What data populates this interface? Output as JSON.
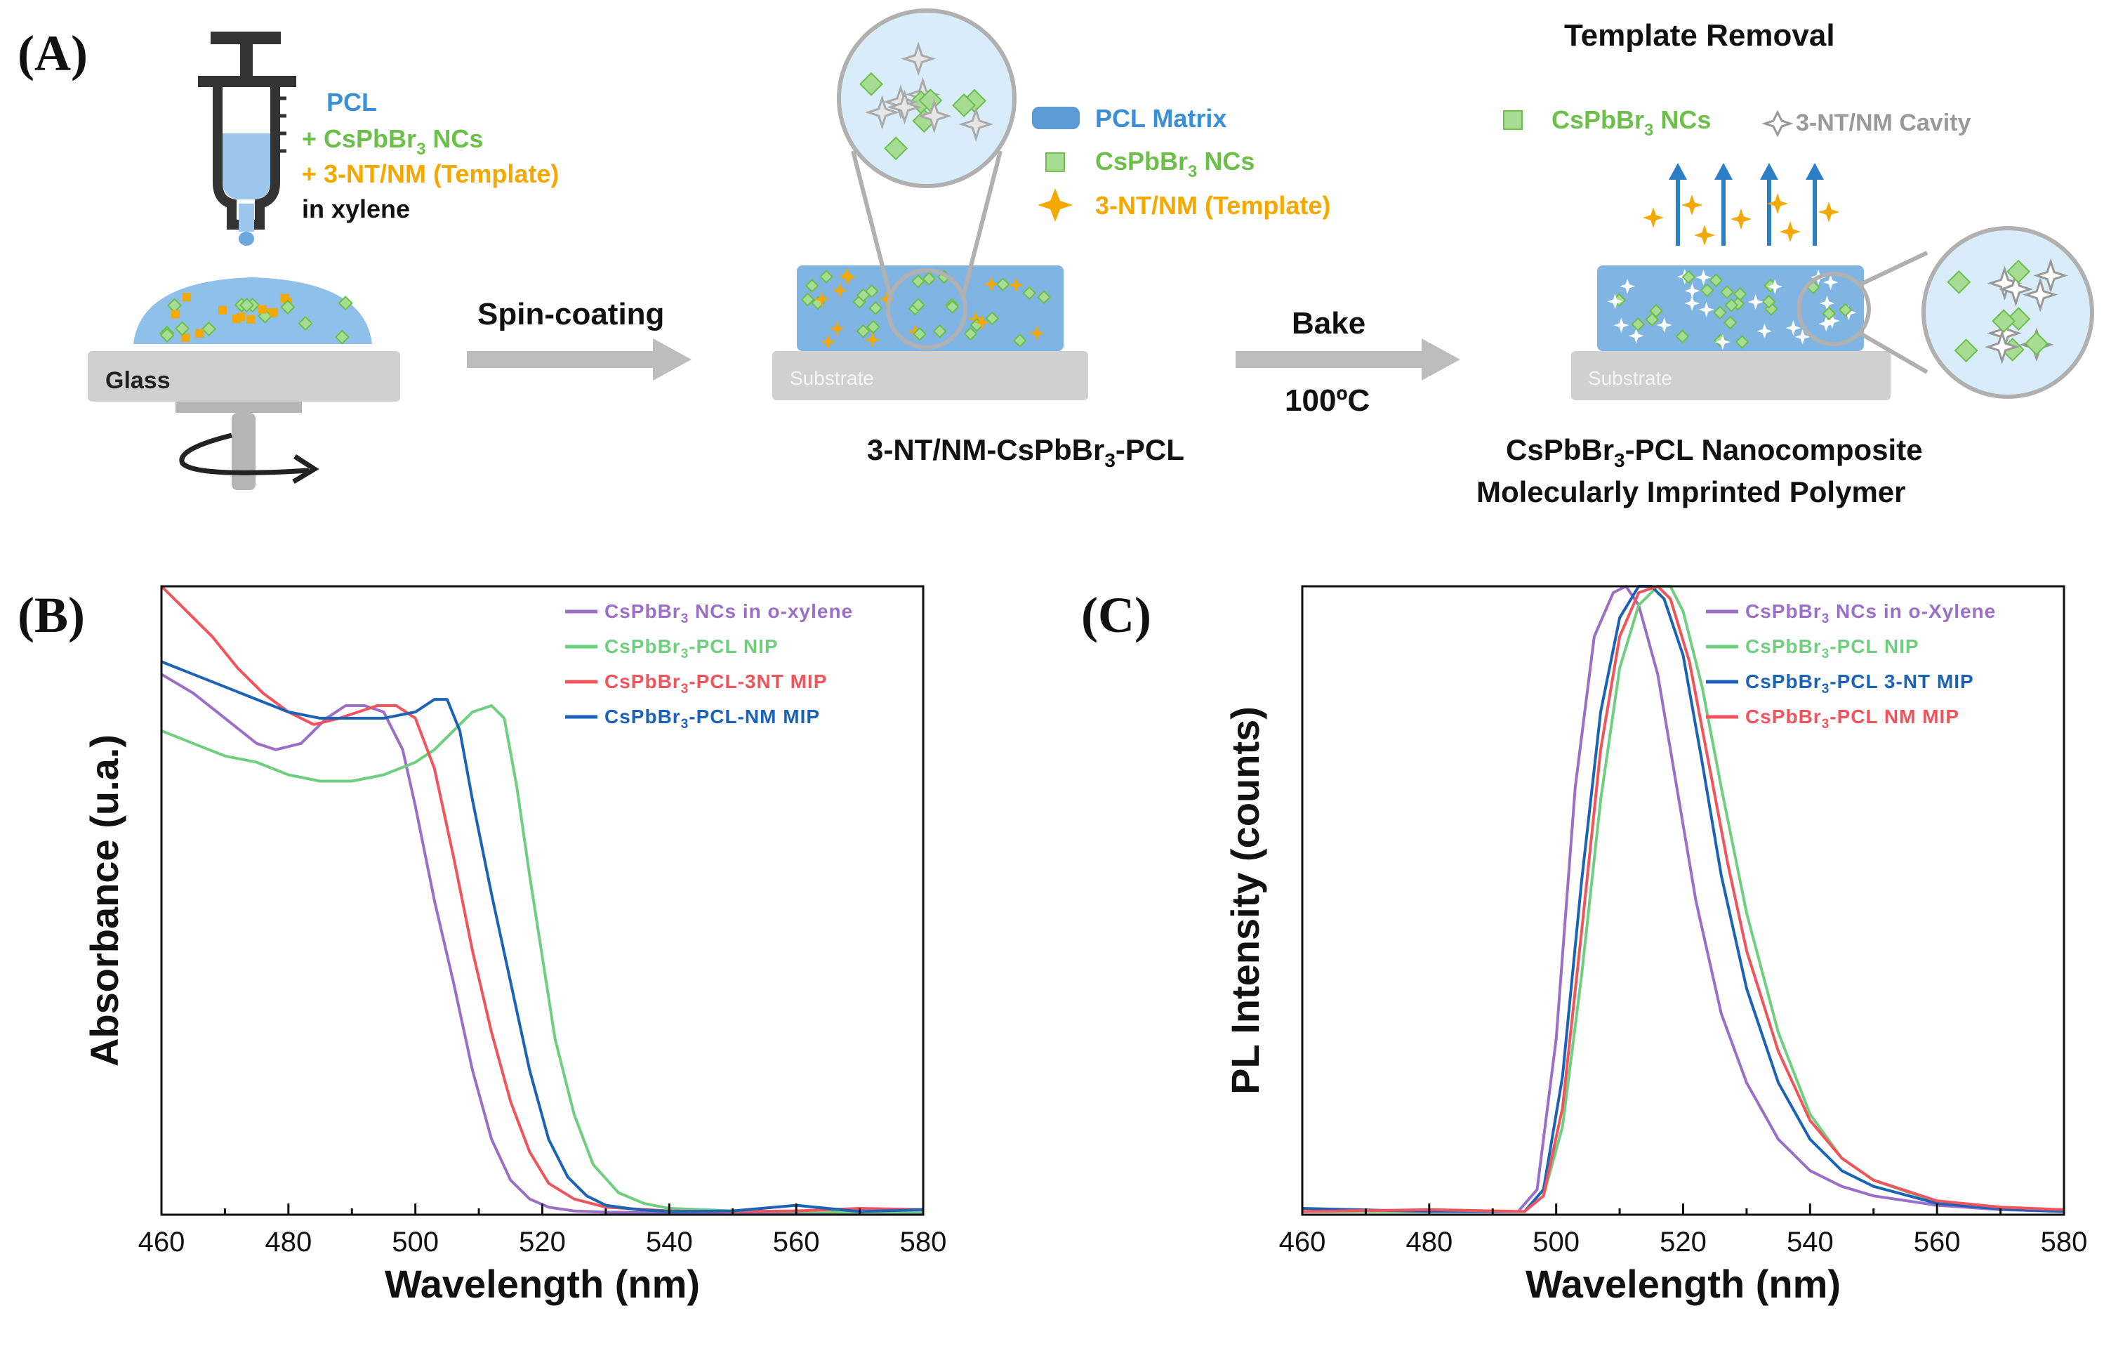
{
  "panel_a": {
    "label": "(A)",
    "mixture": {
      "pcl": "PCL",
      "nc": "+ CsPbBr",
      "nc_sub": "3",
      "nc_suffix": " NCs",
      "template": "+ 3-NT/NM (Template)",
      "solvent": "in xylene"
    },
    "glass_label": "Glass",
    "step1_label": "Spin-coating",
    "legend_mid": {
      "matrix": "PCL Matrix",
      "nc": "CsPbBr",
      "nc_sub": "3",
      "nc_suffix": " NCs",
      "template": "3-NT/NM (Template)"
    },
    "substrate_label": "Substrate",
    "film_caption": {
      "pre": "3-NT/NM-CsPbBr",
      "sub": "3",
      "post": "-PCL"
    },
    "step2_label": "Bake",
    "step2_temp": "100ºC",
    "right_title": "Template Removal",
    "legend_right": {
      "nc": "CsPbBr",
      "nc_sub": "3",
      "nc_suffix": " NCs",
      "cavity": "3-NT/NM Cavity"
    },
    "caption_line1": {
      "pre": "CsPbBr",
      "sub": "3",
      "post": "-PCL Nanocomposite"
    },
    "caption_line2": "Molecularly Imprinted Polymer",
    "colors": {
      "pcl_blue": "#5b9bd5",
      "nc_green": "#6cc04a",
      "template_orange": "#f5a800",
      "gray": "#c8c8c8"
    }
  },
  "chart_data": [
    {
      "panel_label": "(B)",
      "type": "line",
      "xlabel": "Wavelength (nm)",
      "ylabel": "Absorbance (u.a.)",
      "xlim": [
        460,
        580
      ],
      "ylim": [
        0,
        1.0
      ],
      "xticks": [
        460,
        480,
        500,
        520,
        540,
        560,
        580
      ],
      "yticks_shown": false,
      "legend_position": "top-right",
      "series": [
        {
          "name": "CsPbBr3 NCs in o-xylene",
          "legend_pre": "CsPbBr",
          "legend_sub": "3",
          "legend_post": " NCs in o-xylene",
          "color": "#9b6fc7",
          "x": [
            460,
            465,
            470,
            475,
            478,
            482,
            486,
            489,
            492,
            495,
            498,
            500,
            503,
            506,
            509,
            512,
            515,
            518,
            521,
            525,
            530,
            540,
            550,
            560,
            570,
            580
          ],
          "y": [
            0.86,
            0.83,
            0.79,
            0.75,
            0.74,
            0.75,
            0.79,
            0.81,
            0.81,
            0.8,
            0.74,
            0.65,
            0.5,
            0.37,
            0.23,
            0.12,
            0.055,
            0.025,
            0.012,
            0.006,
            0.004,
            0.003,
            0.004,
            0.003,
            0.004,
            0.004
          ]
        },
        {
          "name": "CsPbBr3-PCL NIP",
          "legend_pre": "CsPbBr",
          "legend_sub": "3",
          "legend_post": "-PCL NIP",
          "color": "#6fcf7f",
          "x": [
            460,
            465,
            470,
            475,
            480,
            485,
            490,
            495,
            500,
            503,
            506,
            509,
            512,
            514,
            516,
            518,
            520,
            522,
            525,
            528,
            532,
            536,
            540,
            550,
            560,
            570,
            580
          ],
          "y": [
            0.77,
            0.75,
            0.73,
            0.72,
            0.7,
            0.69,
            0.69,
            0.7,
            0.72,
            0.74,
            0.77,
            0.8,
            0.81,
            0.79,
            0.68,
            0.54,
            0.41,
            0.28,
            0.16,
            0.08,
            0.035,
            0.018,
            0.01,
            0.006,
            0.005,
            0.004,
            0.005
          ]
        },
        {
          "name": "CsPbBr3-PCL-3NT MIP",
          "legend_pre": "CsPbBr",
          "legend_sub": "3",
          "legend_post": "-PCL-3NT MIP",
          "color": "#f2545b",
          "x": [
            460,
            464,
            468,
            472,
            476,
            480,
            484,
            488,
            491,
            494,
            497,
            500,
            503,
            506,
            509,
            512,
            515,
            518,
            521,
            525,
            530,
            540,
            550,
            560,
            570,
            580
          ],
          "y": [
            1.0,
            0.96,
            0.92,
            0.87,
            0.83,
            0.8,
            0.78,
            0.79,
            0.8,
            0.81,
            0.81,
            0.79,
            0.71,
            0.57,
            0.42,
            0.29,
            0.18,
            0.1,
            0.05,
            0.025,
            0.012,
            0.006,
            0.005,
            0.006,
            0.01,
            0.008
          ]
        },
        {
          "name": "CsPbBr3-PCL-NM MIP",
          "legend_pre": "CsPbBr",
          "legend_sub": "3",
          "legend_post": "-PCL-NM MIP",
          "color": "#1a63b8",
          "x": [
            460,
            465,
            470,
            475,
            480,
            485,
            490,
            495,
            500,
            503,
            505,
            507,
            509,
            512,
            515,
            518,
            521,
            524,
            527,
            530,
            535,
            540,
            550,
            560,
            570,
            580
          ],
          "y": [
            0.88,
            0.86,
            0.84,
            0.82,
            0.8,
            0.79,
            0.79,
            0.79,
            0.8,
            0.82,
            0.82,
            0.77,
            0.66,
            0.51,
            0.37,
            0.23,
            0.12,
            0.06,
            0.03,
            0.015,
            0.008,
            0.005,
            0.006,
            0.015,
            0.005,
            0.008
          ]
        }
      ]
    },
    {
      "panel_label": "(C)",
      "type": "line",
      "xlabel": "Wavelength (nm)",
      "ylabel": "PL Intensity (counts)",
      "xlim": [
        460,
        580
      ],
      "ylim": [
        0,
        1.0
      ],
      "xticks": [
        460,
        480,
        500,
        520,
        540,
        560,
        580
      ],
      "yticks_shown": false,
      "legend_position": "top-right",
      "series": [
        {
          "name": "CsPbBr3 NCs in o-Xylene",
          "legend_pre": "CsPbBr",
          "legend_sub": "3",
          "legend_post": " NCs in o-Xylene",
          "color": "#9b6fc7",
          "x": [
            460,
            480,
            494,
            497,
            500,
            503,
            506,
            509,
            511,
            513,
            516,
            519,
            522,
            526,
            530,
            535,
            540,
            545,
            550,
            560,
            570,
            580
          ],
          "y": [
            0.005,
            0.005,
            0.005,
            0.04,
            0.28,
            0.68,
            0.92,
            0.99,
            1.0,
            0.97,
            0.86,
            0.68,
            0.5,
            0.32,
            0.21,
            0.12,
            0.07,
            0.045,
            0.03,
            0.015,
            0.008,
            0.005
          ]
        },
        {
          "name": "CsPbBr3-PCL NIP",
          "legend_pre": "CsPbBr",
          "legend_sub": "3",
          "legend_post": "-PCL NIP",
          "color": "#6fcf7f",
          "x": [
            460,
            480,
            495,
            498,
            501,
            504,
            507,
            510,
            513,
            516,
            518,
            520,
            523,
            526,
            530,
            535,
            540,
            545,
            550,
            560,
            570,
            580
          ],
          "y": [
            0.005,
            0.005,
            0.005,
            0.03,
            0.14,
            0.38,
            0.66,
            0.87,
            0.97,
            1.0,
            1.0,
            0.96,
            0.84,
            0.68,
            0.48,
            0.29,
            0.16,
            0.09,
            0.055,
            0.02,
            0.01,
            0.006
          ]
        },
        {
          "name": "CsPbBr3-PCL 3-NT MIP",
          "legend_pre": "CsPbBr",
          "legend_sub": "3",
          "legend_post": "-PCL 3-NT MIP",
          "color": "#1a63b8",
          "x": [
            460,
            480,
            495,
            498,
            501,
            504,
            507,
            510,
            513,
            515,
            517,
            520,
            523,
            526,
            530,
            535,
            540,
            545,
            550,
            560,
            570,
            580
          ],
          "y": [
            0.01,
            0.005,
            0.005,
            0.04,
            0.22,
            0.53,
            0.8,
            0.95,
            1.0,
            1.0,
            0.98,
            0.89,
            0.72,
            0.54,
            0.36,
            0.21,
            0.12,
            0.07,
            0.045,
            0.018,
            0.009,
            0.005
          ]
        },
        {
          "name": "CsPbBr3-PCL NM MIP",
          "legend_pre": "CsPbBr",
          "legend_sub": "3",
          "legend_post": "-PCL NM MIP",
          "color": "#f2545b",
          "x": [
            460,
            480,
            495,
            498,
            501,
            504,
            507,
            510,
            513,
            516,
            518,
            521,
            524,
            527,
            530,
            535,
            540,
            545,
            550,
            560,
            570,
            580
          ],
          "y": [
            0.005,
            0.008,
            0.005,
            0.03,
            0.17,
            0.45,
            0.74,
            0.92,
            0.99,
            1.0,
            0.98,
            0.88,
            0.72,
            0.56,
            0.42,
            0.26,
            0.15,
            0.09,
            0.055,
            0.022,
            0.012,
            0.008
          ]
        }
      ]
    }
  ]
}
